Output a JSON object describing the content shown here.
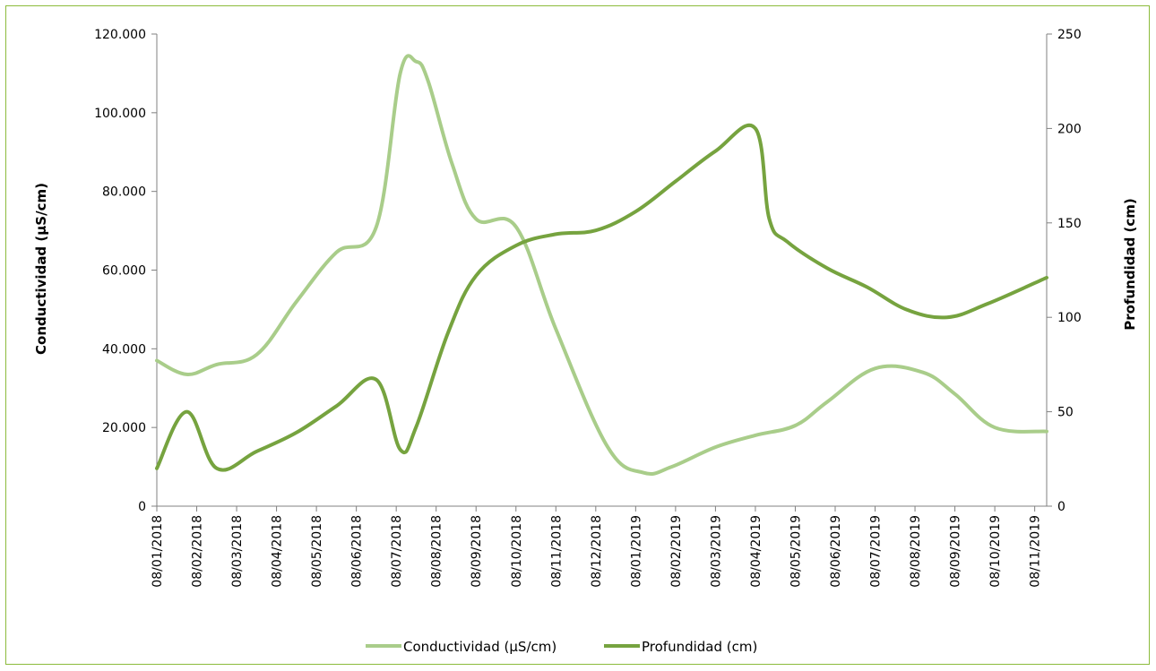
{
  "chart_data": {
    "type": "line",
    "xlabel": "",
    "ylabel_left": "Conductividad (µS/cm)",
    "ylabel_right": "Profundidad (cm)",
    "categories": [
      "08/01/2018",
      "08/02/2018",
      "08/03/2018",
      "08/04/2018",
      "08/05/2018",
      "08/06/2018",
      "08/07/2018",
      "08/08/2018",
      "08/09/2018",
      "08/10/2018",
      "08/11/2018",
      "08/12/2018",
      "08/01/2019",
      "08/02/2019",
      "08/03/2019",
      "08/04/2019",
      "08/05/2019",
      "08/06/2019",
      "08/07/2019",
      "08/08/2019",
      "08/09/2019",
      "08/10/2019",
      "08/11/2019"
    ],
    "ylim_left": [
      0,
      120000
    ],
    "yticks_left": [
      "0",
      "20.000",
      "40.000",
      "60.000",
      "80.000",
      "100.000",
      "120.000"
    ],
    "ylim_right": [
      0,
      250
    ],
    "yticks_right": [
      "0",
      "50",
      "100",
      "150",
      "200",
      "250"
    ],
    "x_domain": [
      0,
      22.3
    ],
    "legend_position": "bottom",
    "grid": false,
    "series": [
      {
        "name": "Conductividad (µS/cm)",
        "axis": "left",
        "color": "#a9cd8a",
        "x": [
          0,
          0.75,
          1.5,
          2.5,
          3.5,
          4.5,
          5.5,
          6.1,
          6.5,
          6.8,
          7.4,
          8,
          9,
          10,
          11.3,
          12.2,
          12.9,
          14,
          15,
          16,
          16.8,
          18,
          19.2,
          20,
          21,
          22.3
        ],
        "values": [
          37000,
          33500,
          36000,
          38500,
          52000,
          64500,
          71000,
          110000,
          113000,
          108000,
          87000,
          73000,
          71000,
          45000,
          15000,
          8500,
          10000,
          15000,
          18000,
          20500,
          26500,
          35000,
          34000,
          28500,
          20000,
          19000
        ]
      },
      {
        "name": "Profundidad (cm)",
        "axis": "right",
        "color": "#76a33f",
        "x": [
          0,
          0.75,
          1.5,
          2.5,
          3.5,
          4.5,
          5.5,
          6.1,
          6.5,
          7.3,
          8,
          9,
          10,
          11,
          12,
          13,
          14,
          15,
          15.35,
          15.8,
          16.8,
          17.8,
          18.8,
          19.8,
          20.8,
          22.3
        ],
        "values": [
          20,
          50,
          20,
          29,
          39,
          53,
          67,
          30,
          42,
          92,
          122,
          138,
          144,
          146,
          156,
          172,
          188,
          200,
          152,
          140,
          126,
          116,
          104,
          100,
          107,
          121
        ]
      }
    ]
  }
}
